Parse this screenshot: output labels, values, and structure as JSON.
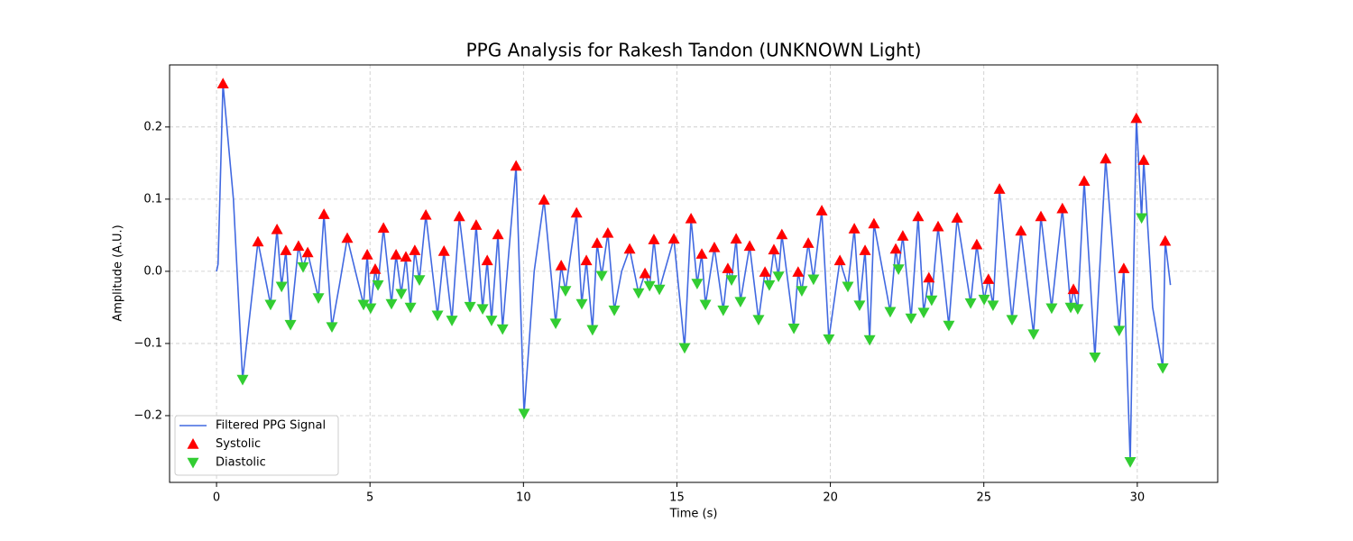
{
  "chart_data": {
    "type": "line",
    "title": "PPG Analysis for Rakesh Tandon (UNKNOWN Light)",
    "xlabel": "Time (s)",
    "ylabel": "Amplitude (A.U.)",
    "xlim": [
      -1.53,
      32.62
    ],
    "ylim": [
      -0.2925,
      0.286
    ],
    "xticks": [
      0,
      5,
      10,
      15,
      20,
      25,
      30
    ],
    "yticks": [
      {
        "value": -0.2,
        "label": "−0.2"
      },
      {
        "value": -0.1,
        "label": "−0.1"
      },
      {
        "value": 0,
        "label": "0.0"
      },
      0.1,
      0.2
    ],
    "grid": true,
    "legend": "lower left",
    "series": [
      {
        "name": "Filtered PPG Signal",
        "color": "#4169e1",
        "type": "line",
        "x": [
          0,
          0.05,
          0.21,
          0.55,
          0.85,
          1.35,
          1.76,
          1.97,
          2.12,
          2.26,
          2.41,
          2.67,
          2.82,
          2.97,
          3.32,
          3.5,
          3.76,
          4.0,
          4.26,
          4.79,
          4.91,
          5.02,
          5.17,
          5.26,
          5.44,
          5.7,
          5.85,
          6.02,
          6.17,
          6.32,
          6.46,
          6.61,
          6.82,
          7.2,
          7.41,
          7.67,
          7.91,
          8.26,
          8.46,
          8.67,
          8.82,
          8.96,
          9.17,
          9.32,
          9.55,
          9.76,
          10.02,
          10.35,
          10.67,
          11.05,
          11.23,
          11.37,
          11.73,
          11.9,
          12.05,
          12.25,
          12.4,
          12.55,
          12.75,
          12.96,
          13.2,
          13.46,
          13.75,
          13.96,
          14.11,
          14.25,
          14.43,
          14.9,
          15.25,
          15.46,
          15.66,
          15.81,
          15.93,
          16.22,
          16.51,
          16.66,
          16.78,
          16.93,
          17.07,
          17.37,
          17.66,
          17.87,
          18.01,
          18.16,
          18.31,
          18.42,
          18.81,
          18.95,
          19.07,
          19.28,
          19.45,
          19.72,
          19.95,
          20.31,
          20.57,
          20.78,
          20.95,
          21.13,
          21.28,
          21.42,
          21.95,
          22.13,
          22.22,
          22.36,
          22.63,
          22.86,
          23.04,
          23.21,
          23.3,
          23.51,
          23.86,
          24.13,
          24.57,
          24.77,
          25.01,
          25.15,
          25.3,
          25.51,
          25.92,
          26.21,
          26.62,
          26.86,
          27.21,
          27.56,
          27.83,
          27.92,
          28.06,
          28.27,
          28.62,
          28.97,
          29.41,
          29.56,
          29.77,
          29.97,
          30.14,
          30.21,
          30.5,
          30.83,
          30.91,
          31.08
        ],
        "values": [
          0,
          0.01,
          0.26,
          0.1,
          -0.15,
          0.041,
          -0.046,
          0.058,
          -0.021,
          0.029,
          -0.074,
          0.035,
          0.006,
          0.026,
          -0.037,
          0.079,
          -0.077,
          -0.02,
          0.046,
          -0.046,
          0.023,
          -0.051,
          0.003,
          -0.019,
          0.06,
          -0.045,
          0.023,
          -0.031,
          0.02,
          -0.05,
          0.029,
          -0.012,
          0.078,
          -0.061,
          0.028,
          -0.068,
          0.076,
          -0.049,
          0.064,
          -0.052,
          0.015,
          -0.068,
          0.051,
          -0.08,
          0.04,
          0.146,
          -0.197,
          0,
          0.099,
          -0.072,
          0.008,
          -0.027,
          0.081,
          -0.045,
          0.015,
          -0.081,
          0.039,
          -0.006,
          0.053,
          -0.054,
          0,
          0.031,
          -0.03,
          -0.003,
          -0.02,
          0.044,
          -0.025,
          0.045,
          -0.106,
          0.073,
          -0.017,
          0.024,
          -0.046,
          0.033,
          -0.054,
          0.004,
          -0.012,
          0.045,
          -0.042,
          0.035,
          -0.067,
          -0.001,
          -0.019,
          0.03,
          -0.007,
          0.051,
          -0.079,
          -0.001,
          -0.027,
          0.039,
          -0.011,
          0.084,
          -0.094,
          0.015,
          -0.021,
          0.059,
          -0.047,
          0.029,
          -0.095,
          0.066,
          -0.056,
          0.031,
          0.003,
          0.049,
          -0.065,
          0.076,
          -0.057,
          -0.009,
          -0.04,
          0.062,
          -0.075,
          0.074,
          -0.044,
          0.037,
          -0.039,
          -0.011,
          -0.047,
          0.114,
          -0.067,
          0.056,
          -0.087,
          0.076,
          -0.051,
          0.087,
          -0.05,
          -0.025,
          -0.052,
          0.125,
          -0.119,
          0.156,
          -0.082,
          0.004,
          -0.264,
          0.212,
          0.074,
          0.154,
          -0.05,
          -0.134,
          0.042,
          -0.019
        ]
      },
      {
        "name": "Systolic",
        "color": "#ff0000",
        "type": "scatter",
        "marker": "triangle-up",
        "x": [
          0.21,
          1.35,
          1.97,
          2.26,
          2.67,
          2.97,
          3.5,
          4.26,
          4.91,
          5.17,
          5.44,
          5.85,
          6.17,
          6.46,
          6.82,
          7.41,
          7.91,
          8.46,
          8.82,
          9.17,
          9.76,
          10.67,
          11.23,
          11.73,
          12.05,
          12.4,
          12.75,
          13.46,
          13.96,
          14.25,
          14.9,
          15.46,
          15.81,
          16.22,
          16.66,
          16.93,
          17.37,
          17.87,
          18.16,
          18.42,
          18.95,
          19.28,
          19.72,
          20.31,
          20.78,
          21.13,
          21.42,
          22.13,
          22.36,
          22.86,
          23.21,
          23.51,
          24.13,
          24.77,
          25.15,
          25.51,
          26.21,
          26.86,
          27.56,
          27.92,
          28.27,
          28.97,
          29.56,
          29.97,
          30.21,
          30.91
        ],
        "values": [
          0.26,
          0.041,
          0.058,
          0.029,
          0.035,
          0.026,
          0.079,
          0.046,
          0.023,
          0.003,
          0.06,
          0.023,
          0.02,
          0.029,
          0.078,
          0.028,
          0.076,
          0.064,
          0.015,
          0.051,
          0.146,
          0.099,
          0.008,
          0.081,
          0.015,
          0.039,
          0.053,
          0.031,
          -0.003,
          0.044,
          0.045,
          0.073,
          0.024,
          0.033,
          0.004,
          0.045,
          0.035,
          -0.001,
          0.03,
          0.051,
          -0.001,
          0.039,
          0.084,
          0.015,
          0.059,
          0.029,
          0.066,
          0.031,
          0.049,
          0.076,
          -0.009,
          0.062,
          0.074,
          0.037,
          -0.011,
          0.114,
          0.056,
          0.076,
          0.087,
          -0.025,
          0.125,
          0.156,
          0.004,
          0.212,
          0.154,
          0.042
        ]
      },
      {
        "name": "Diastolic",
        "color": "#32cd32",
        "type": "scatter",
        "marker": "triangle-down",
        "x": [
          0.85,
          1.76,
          2.12,
          2.41,
          2.82,
          3.32,
          3.76,
          4.79,
          5.02,
          5.26,
          5.7,
          6.02,
          6.32,
          6.61,
          7.2,
          7.67,
          8.26,
          8.67,
          8.96,
          9.32,
          10.02,
          11.05,
          11.37,
          11.9,
          12.25,
          12.55,
          12.96,
          13.75,
          14.11,
          14.43,
          15.25,
          15.66,
          15.93,
          16.51,
          16.78,
          17.07,
          17.66,
          18.01,
          18.31,
          18.81,
          19.07,
          19.45,
          19.95,
          20.57,
          20.95,
          21.28,
          21.95,
          22.22,
          22.63,
          23.04,
          23.3,
          23.86,
          24.57,
          25.01,
          25.3,
          25.92,
          26.62,
          27.21,
          27.83,
          28.06,
          28.62,
          29.41,
          29.77,
          30.14,
          30.83
        ],
        "values": [
          -0.15,
          -0.046,
          -0.021,
          -0.074,
          0.006,
          -0.037,
          -0.077,
          -0.046,
          -0.051,
          -0.019,
          -0.045,
          -0.031,
          -0.05,
          -0.012,
          -0.061,
          -0.068,
          -0.049,
          -0.052,
          -0.068,
          -0.08,
          -0.197,
          -0.072,
          -0.027,
          -0.045,
          -0.081,
          -0.006,
          -0.054,
          -0.03,
          -0.02,
          -0.025,
          -0.106,
          -0.017,
          -0.046,
          -0.054,
          -0.012,
          -0.042,
          -0.067,
          -0.019,
          -0.007,
          -0.079,
          -0.027,
          -0.011,
          -0.094,
          -0.021,
          -0.047,
          -0.095,
          -0.056,
          0.003,
          -0.065,
          -0.057,
          -0.04,
          -0.075,
          -0.044,
          -0.039,
          -0.047,
          -0.067,
          -0.087,
          -0.051,
          -0.05,
          -0.052,
          -0.119,
          -0.082,
          -0.264,
          0.074,
          -0.134
        ]
      }
    ]
  }
}
